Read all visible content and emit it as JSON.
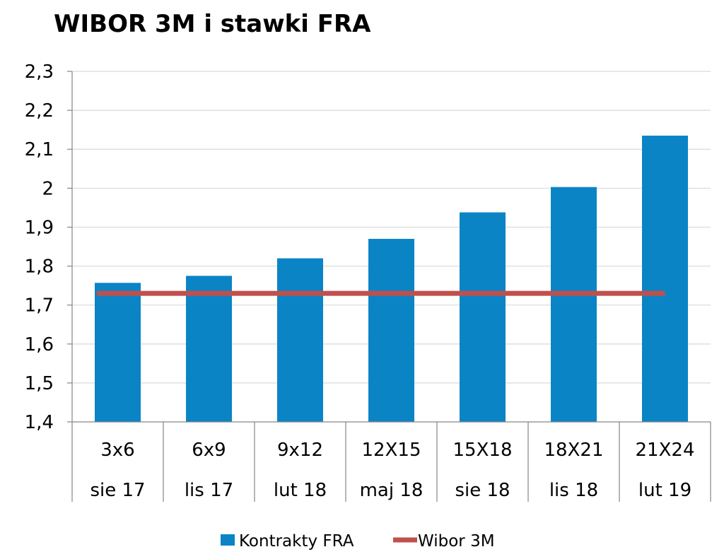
{
  "chart_data": {
    "type": "bar",
    "title": "WIBOR 3M i stawki FRA",
    "xlabel": "",
    "ylabel": "",
    "ylim": [
      1.4,
      2.3
    ],
    "yticks": [
      "1,4",
      "1,5",
      "1,6",
      "1,7",
      "1,8",
      "1,9",
      "2",
      "2,1",
      "2,2",
      "2,3"
    ],
    "yticks_values": [
      1.4,
      1.5,
      1.6,
      1.7,
      1.8,
      1.9,
      2.0,
      2.1,
      2.2,
      2.3
    ],
    "grid": true,
    "legend_position": "bottom",
    "categories": [
      {
        "line1": "3x6",
        "line2": "sie 17"
      },
      {
        "line1": "6x9",
        "line2": "lis 17"
      },
      {
        "line1": "9x12",
        "line2": "lut 18"
      },
      {
        "line1": "12X15",
        "line2": "maj 18"
      },
      {
        "line1": "15X18",
        "line2": "sie 18"
      },
      {
        "line1": "18X21",
        "line2": "lis 18"
      },
      {
        "line1": "21X24",
        "line2": "lut 19"
      }
    ],
    "series": [
      {
        "name": "Kontrakty FRA",
        "type": "bar",
        "color": "#0B84C6",
        "values": [
          1.757,
          1.775,
          1.82,
          1.87,
          1.938,
          2.003,
          2.135
        ]
      },
      {
        "name": "Wibor 3M",
        "type": "line",
        "color": "#C0504D",
        "values": [
          1.73,
          1.73,
          1.73,
          1.73,
          1.73,
          1.73,
          1.73
        ]
      }
    ]
  }
}
